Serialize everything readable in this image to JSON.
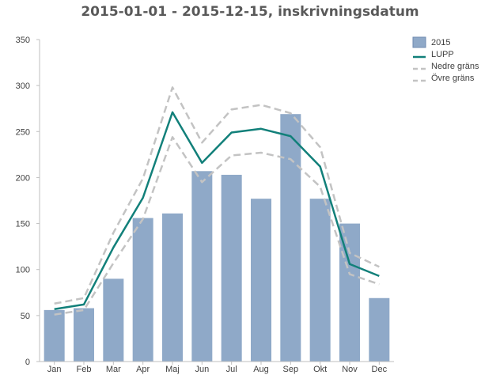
{
  "chart_data": {
    "type": "bar",
    "title": "2015-01-01 - 2015-12-15, inskrivningsdatum",
    "xlabel": "",
    "ylabel": "",
    "categories": [
      "Jan",
      "Feb",
      "Mar",
      "Apr",
      "Maj",
      "Jun",
      "Jul",
      "Aug",
      "Sep",
      "Okt",
      "Nov",
      "Dec"
    ],
    "ylim": [
      0,
      350
    ],
    "yticks": [
      0,
      50,
      100,
      150,
      200,
      250,
      300,
      350
    ],
    "grid": false,
    "legend_position": "top-right",
    "series": [
      {
        "name": "2015",
        "kind": "bar",
        "color": "#8fa9c8",
        "values": [
          56,
          58,
          90,
          156,
          161,
          207,
          203,
          177,
          269,
          177,
          150,
          69
        ]
      },
      {
        "name": "LUPP",
        "kind": "line",
        "color": "#12807a",
        "values": [
          57,
          62,
          124,
          178,
          271,
          216,
          249,
          253,
          245,
          212,
          106,
          93
        ]
      },
      {
        "name": "Nedre gräns",
        "kind": "dashed-line",
        "color": "#c3c3c3",
        "values": [
          51,
          56,
          107,
          155,
          244,
          195,
          224,
          227,
          220,
          190,
          95,
          84
        ]
      },
      {
        "name": "Övre gräns",
        "kind": "dashed-line",
        "color": "#c3c3c3",
        "values": [
          63,
          69,
          140,
          199,
          298,
          238,
          274,
          279,
          270,
          233,
          118,
          103
        ]
      }
    ]
  }
}
